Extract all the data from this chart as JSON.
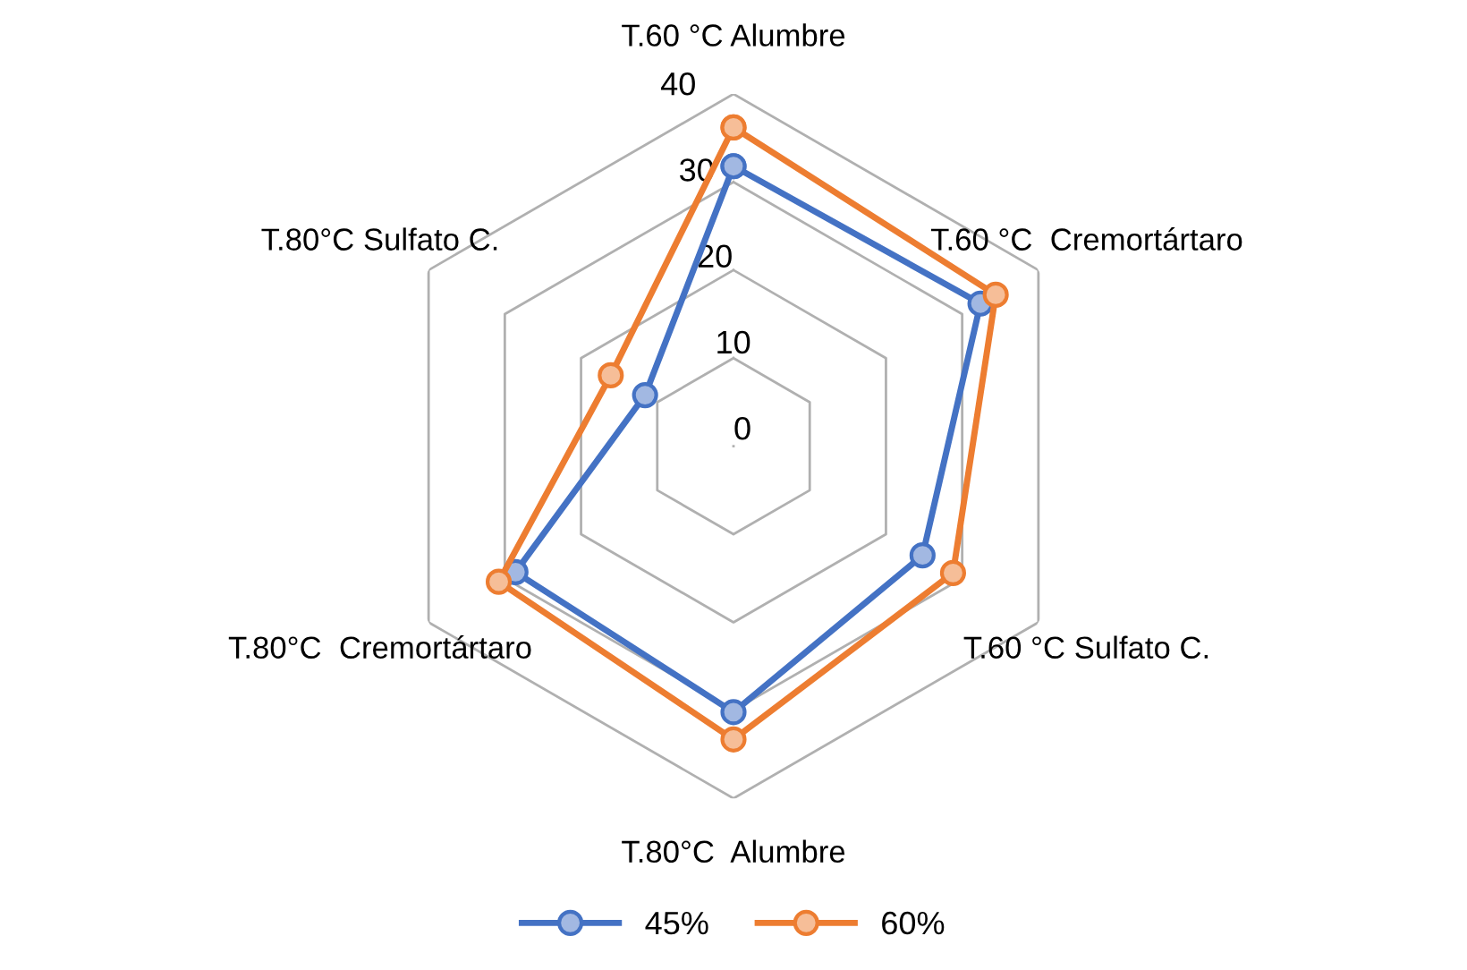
{
  "chart_data": {
    "type": "radar",
    "categories": [
      "T.60 °C Alumbre",
      "T.60 °C  Cremortártaro",
      "T.60 °C Sulfato C.",
      "T.80°C  Alumbre",
      "T.80°C  Cremortártaro",
      "T.80°C Sulfato C."
    ],
    "series": [
      {
        "name": "45%",
        "color": "#4472c4",
        "values": [
          31.8,
          32.4,
          24.8,
          30.2,
          28.6,
          11.6
        ]
      },
      {
        "name": "60%",
        "color": "#ed7d31",
        "values": [
          36.2,
          34.4,
          28.8,
          33.3,
          30.8,
          16.1
        ]
      }
    ],
    "ylim": [
      0,
      40
    ],
    "yticks": [
      0,
      10,
      20,
      30,
      40
    ],
    "grid": true,
    "legend": "bottom",
    "marker": "circle"
  }
}
